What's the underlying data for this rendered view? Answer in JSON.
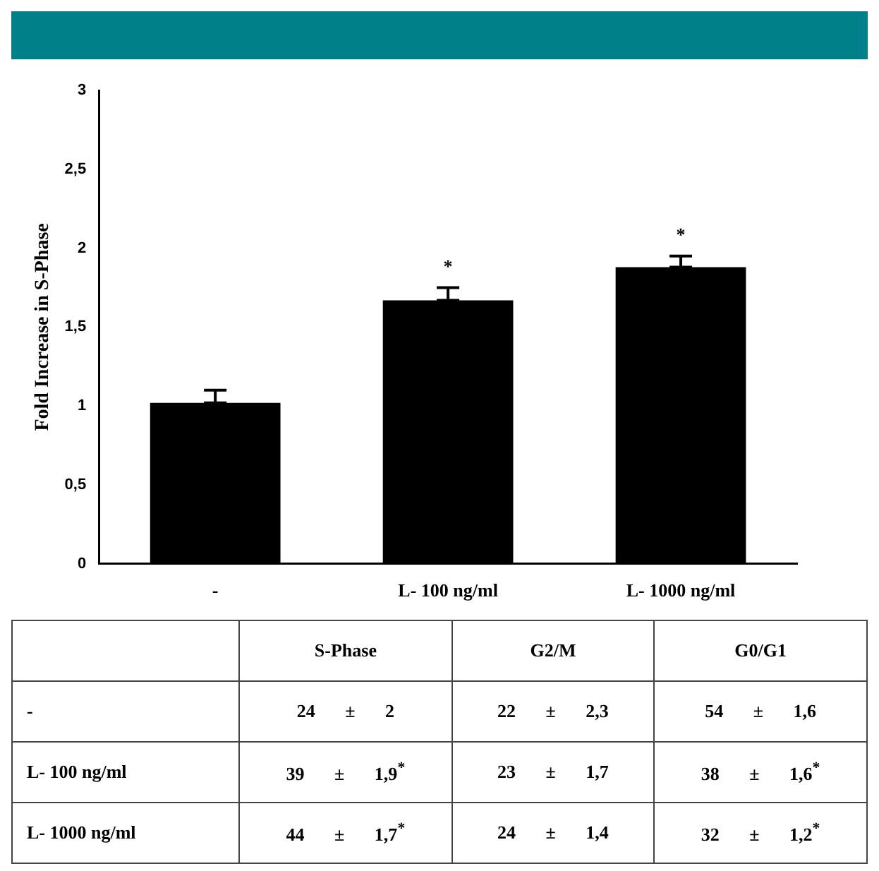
{
  "chart_data": [
    {
      "type": "bar",
      "ylabel": "Fold Increase in S-Phase",
      "categories": [
        "-",
        "L- 100 ng/ml",
        "L- 1000 ng/ml"
      ],
      "values": [
        1.02,
        1.67,
        1.88
      ],
      "errors": [
        [
          1.02,
          1.1
        ],
        [
          1.67,
          1.75
        ],
        [
          1.88,
          1.95
        ]
      ],
      "color": "#000000",
      "ylim": [
        0,
        3
      ],
      "yticks": [
        0,
        {
          "value": 0.5,
          "label": "0,5"
        },
        1,
        {
          "value": 1.5,
          "label": "1,5"
        },
        2,
        {
          "value": 2.5,
          "label": "2,5"
        },
        3
      ],
      "annotations": [
        "*",
        "*"
      ]
    },
    {
      "type": "other",
      "categories": [
        "S-Phase",
        "G2/M",
        "G0/G1"
      ],
      "y_categories": [
        "-",
        "L- 100 ng/ml",
        "L- 1000 ng/ml"
      ],
      "cell_labels": [
        [
          "24 ± 2",
          "22 ± 2,3",
          "54 ± 1,6"
        ],
        [
          "39 ± 1,9$^{*}$",
          "23 ± 1,7",
          "38 ± 1,6$^{*}$"
        ],
        [
          "44 ± 1,7$^{*}$",
          "24 ± 1,4",
          "32 ± 1,2$^{*}$"
        ]
      ]
    }
  ]
}
